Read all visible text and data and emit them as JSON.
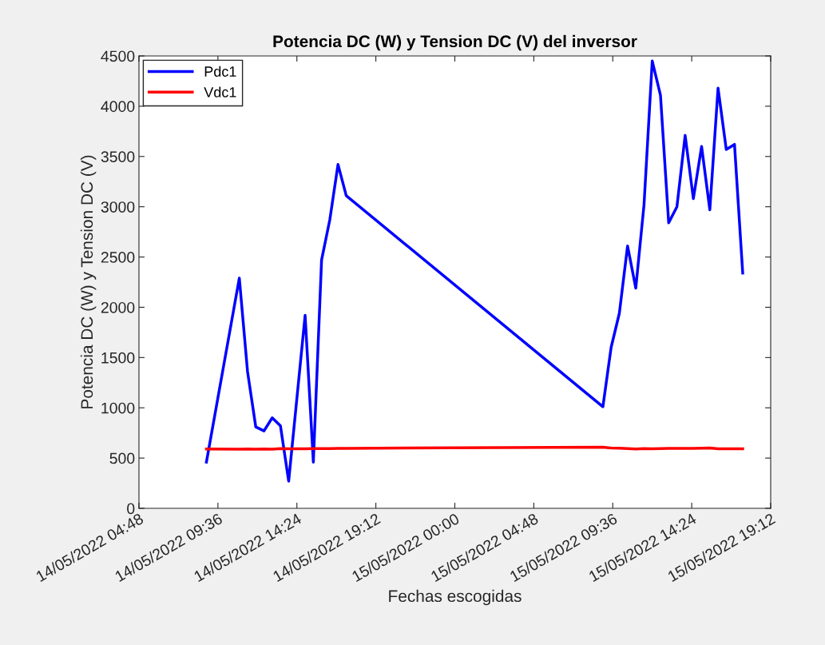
{
  "chart_data": {
    "type": "line",
    "title": "Potencia DC (W) y Tension DC (V) del inversor",
    "xlabel": "Fechas escogidas",
    "ylabel": "Potencia DC (W) y Tension DC (V)",
    "x": [
      "2022-05-14T08:54",
      "2022-05-14T10:54",
      "2022-05-14T11:24",
      "2022-05-14T11:54",
      "2022-05-14T12:24",
      "2022-05-14T12:54",
      "2022-05-14T13:24",
      "2022-05-14T13:54",
      "2022-05-14T14:54",
      "2022-05-14T15:24",
      "2022-05-14T15:54",
      "2022-05-14T16:24",
      "2022-05-14T16:54",
      "2022-05-14T17:24",
      "2022-05-15T09:00",
      "2022-05-15T09:30",
      "2022-05-15T10:00",
      "2022-05-15T10:30",
      "2022-05-15T11:00",
      "2022-05-15T11:30",
      "2022-05-15T12:00",
      "2022-05-15T12:30",
      "2022-05-15T13:00",
      "2022-05-15T13:30",
      "2022-05-15T14:00",
      "2022-05-15T14:30",
      "2022-05-15T15:00",
      "2022-05-15T15:30",
      "2022-05-15T16:00",
      "2022-05-15T16:30",
      "2022-05-15T17:00",
      "2022-05-15T17:30"
    ],
    "series": [
      {
        "name": "Pdc1",
        "color": "#0000ff",
        "values": [
          460,
          2290,
          1360,
          810,
          770,
          900,
          820,
          270,
          1920,
          460,
          2470,
          2870,
          3420,
          3110,
          1010,
          1600,
          1940,
          2610,
          2190,
          3020,
          4450,
          4110,
          2840,
          3000,
          3710,
          3080,
          3600,
          2970,
          4180,
          3570,
          3620,
          2340
        ]
      },
      {
        "name": "Vdc1",
        "color": "#ff0000",
        "values": [
          590,
          588,
          590,
          588,
          590,
          589,
          595,
          592,
          592,
          595,
          595,
          595,
          596,
          597,
          608,
          600,
          598,
          595,
          590,
          595,
          593,
          595,
          596,
          596,
          596,
          597,
          598,
          600,
          592,
          592,
          592,
          592
        ]
      }
    ],
    "ylim": [
      0,
      4500
    ],
    "yticks": [
      0,
      500,
      1000,
      1500,
      2000,
      2500,
      3000,
      3500,
      4000,
      4500
    ],
    "xlim": [
      "2022-05-14T04:48",
      "2022-05-15T19:12"
    ],
    "xticks": [
      {
        "value": "2022-05-14T04:48",
        "label": "14/05/2022 04:48"
      },
      {
        "value": "2022-05-14T09:36",
        "label": "14/05/2022 09:36"
      },
      {
        "value": "2022-05-14T14:24",
        "label": "14/05/2022 14:24"
      },
      {
        "value": "2022-05-14T19:12",
        "label": "14/05/2022 19:12"
      },
      {
        "value": "2022-05-15T00:00",
        "label": "15/05/2022 00:00"
      },
      {
        "value": "2022-05-15T04:48",
        "label": "15/05/2022 04:48"
      },
      {
        "value": "2022-05-15T09:36",
        "label": "15/05/2022 09:36"
      },
      {
        "value": "2022-05-15T14:24",
        "label": "15/05/2022 14:24"
      },
      {
        "value": "2022-05-15T19:12",
        "label": "15/05/2022 19:12"
      }
    ],
    "grid": false,
    "legend": "top left",
    "line_style": "solid",
    "marker": "none"
  }
}
